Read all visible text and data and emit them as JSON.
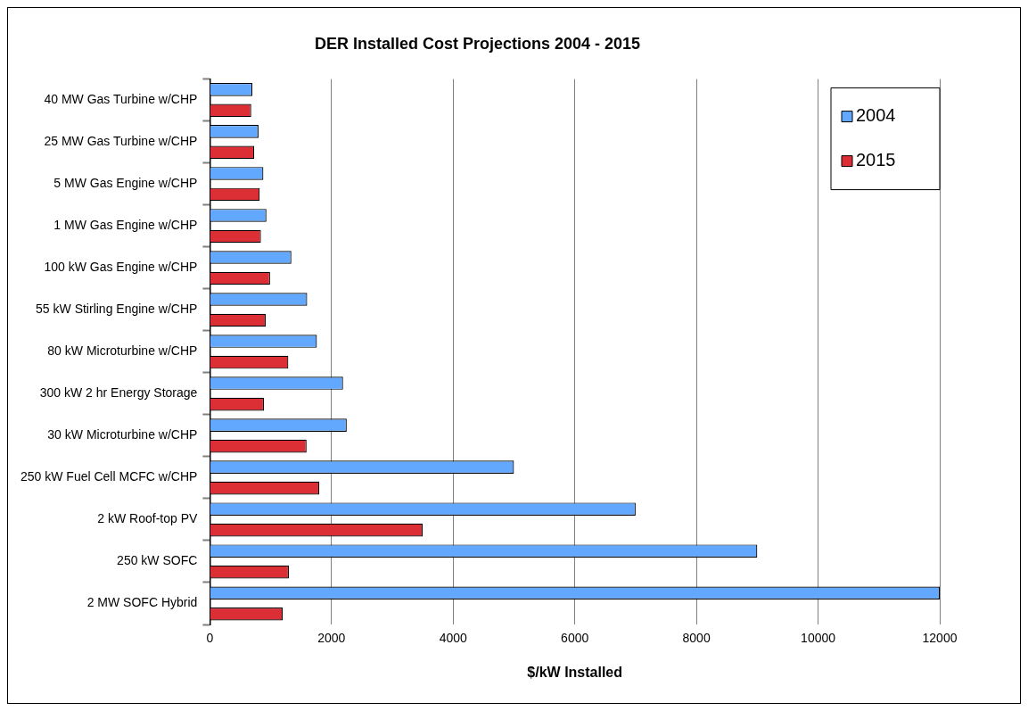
{
  "chart_data": {
    "type": "bar",
    "orientation": "horizontal",
    "title": "DER Installed Cost Projections 2004 - 2015",
    "xlabel": "$/kW Installed",
    "categories": [
      "40 MW Gas Turbine w/CHP",
      "25 MW Gas Turbine w/CHP",
      "5 MW Gas Engine w/CHP",
      "1 MW Gas Engine w/CHP",
      "100 kW Gas Engine w/CHP",
      "55 kW Stirling Engine w/CHP",
      "80 kW Microturbine w/CHP",
      "300 kW 2 hr Energy Storage",
      "30 kW Microturbine w/CHP",
      "250 kW Fuel Cell MCFC w/CHP",
      "2 kW Roof-top PV",
      "250 kW SOFC",
      "2 MW SOFC Hybrid"
    ],
    "series": [
      {
        "name": "2004",
        "color": "#63a8ff",
        "values": [
          700,
          800,
          880,
          930,
          1340,
          1600,
          1760,
          2190,
          2250,
          5000,
          7000,
          9000,
          12000
        ]
      },
      {
        "name": "2015",
        "color": "#dc2e35",
        "values": [
          680,
          730,
          820,
          840,
          990,
          920,
          1290,
          890,
          1590,
          1800,
          3500,
          1300,
          1200
        ]
      }
    ],
    "xlim": [
      0,
      12000
    ],
    "xticks": [
      0,
      2000,
      4000,
      6000,
      8000,
      10000,
      12000
    ],
    "grid": "x",
    "legend": "top right"
  }
}
